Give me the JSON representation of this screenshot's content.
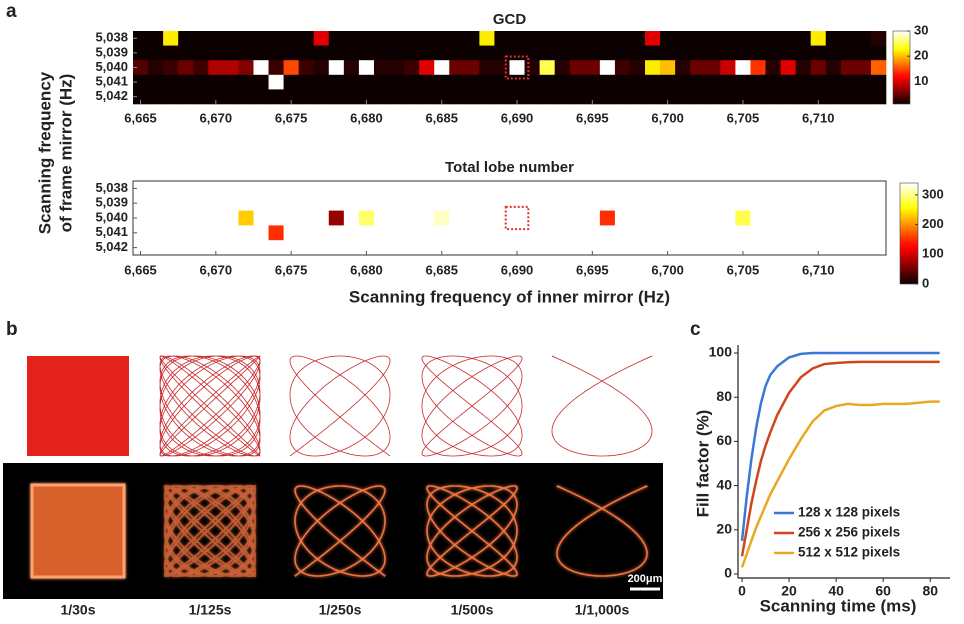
{
  "figure": {
    "panel_labels": [
      "a",
      "b",
      "c"
    ],
    "exposures": [
      "1/30s",
      "1/125s",
      "1/250s",
      "1/500s",
      "1/1,000s"
    ],
    "scale_bar": "200μm"
  },
  "chart_data": [
    {
      "type": "heatmap",
      "title": "GCD",
      "ylabel": "Scanning frequency of frame mirror (Hz)",
      "colormap": "hot",
      "yreverse": true,
      "x": [
        6665,
        6666,
        6667,
        6668,
        6669,
        6670,
        6671,
        6672,
        6673,
        6674,
        6675,
        6676,
        6677,
        6678,
        6679,
        6680,
        6681,
        6682,
        6683,
        6684,
        6685,
        6686,
        6687,
        6688,
        6689,
        6690,
        6691,
        6692,
        6693,
        6694,
        6695,
        6696,
        6697,
        6698,
        6699,
        6700,
        6701,
        6702,
        6703,
        6704,
        6705,
        6706,
        6707,
        6708,
        6709,
        6710,
        6711,
        6712,
        6713,
        6714
      ],
      "y": [
        5038,
        5039,
        5040,
        5041,
        5042
      ],
      "values": [
        [
          1,
          1,
          22,
          1,
          1,
          1,
          1,
          1,
          1,
          1,
          1,
          1,
          10,
          1,
          1,
          1,
          1,
          1,
          1,
          1,
          1,
          1,
          1,
          22,
          1,
          1,
          1,
          1,
          1,
          1,
          1,
          1,
          1,
          1,
          10,
          1,
          1,
          1,
          1,
          1,
          1,
          1,
          1,
          1,
          1,
          22,
          1,
          1,
          1,
          2
        ],
        [
          1,
          1,
          1,
          1,
          1,
          1,
          1,
          1,
          1,
          1,
          1,
          1,
          1,
          1,
          1,
          1,
          1,
          1,
          1,
          1,
          1,
          1,
          1,
          1,
          1,
          1,
          1,
          1,
          1,
          1,
          1,
          1,
          1,
          1,
          1,
          1,
          1,
          1,
          1,
          1,
          1,
          1,
          1,
          1,
          1,
          1,
          1,
          1,
          1,
          1
        ],
        [
          4,
          2,
          3,
          5,
          3,
          8,
          8,
          6,
          30,
          3,
          15,
          3,
          2,
          30,
          2,
          30,
          2,
          2,
          3,
          10,
          30,
          5,
          5,
          2,
          2,
          30,
          2,
          25,
          2,
          5,
          5,
          30,
          3,
          2,
          22,
          20,
          2,
          5,
          5,
          9,
          30,
          14,
          2,
          10,
          2,
          5,
          2,
          5,
          5,
          16
        ],
        [
          1,
          1,
          1,
          1,
          1,
          1,
          1,
          1,
          1,
          30,
          1,
          1,
          1,
          1,
          1,
          1,
          1,
          1,
          1,
          1,
          1,
          1,
          1,
          1,
          1,
          1,
          1,
          1,
          1,
          1,
          1,
          1,
          1,
          1,
          1,
          1,
          1,
          1,
          1,
          1,
          1,
          1,
          1,
          1,
          1,
          1,
          1,
          1,
          1,
          1
        ],
        [
          1,
          1,
          1,
          1,
          1,
          1,
          1,
          1,
          1,
          1,
          1,
          1,
          1,
          1,
          1,
          1,
          1,
          1,
          1,
          1,
          1,
          1,
          1,
          1,
          1,
          1,
          1,
          1,
          1,
          1,
          1,
          1,
          1,
          1,
          1,
          1,
          1,
          1,
          1,
          1,
          1,
          1,
          1,
          1,
          1,
          1,
          1,
          1,
          1,
          1
        ]
      ],
      "highlight": {
        "x": 6690,
        "y": 5040
      },
      "xlim": [
        6664.5,
        6714.5
      ],
      "ylim": [
        5037.5,
        5042.5
      ],
      "zlim": [
        1,
        30
      ],
      "zticks": [
        10,
        20,
        30
      ],
      "xticks": [
        {
          "value": 6665,
          "label": "6,665"
        },
        {
          "value": 6670,
          "label": "6,670"
        },
        {
          "value": 6675,
          "label": "6,675"
        },
        {
          "value": 6680,
          "label": "6,680"
        },
        {
          "value": 6685,
          "label": "6,685"
        },
        {
          "value": 6690,
          "label": "6,690"
        },
        {
          "value": 6695,
          "label": "6,695"
        },
        {
          "value": 6700,
          "label": "6,700"
        },
        {
          "value": 6705,
          "label": "6,705"
        },
        {
          "value": 6710,
          "label": "6,710"
        }
      ],
      "yticks": [
        {
          "value": 5038,
          "label": "5,038"
        },
        {
          "value": 5039,
          "label": "5,039"
        },
        {
          "value": 5040,
          "label": "5,040"
        },
        {
          "value": 5041,
          "label": "5,041"
        },
        {
          "value": 5042,
          "label": "5,042"
        }
      ]
    },
    {
      "type": "scatter",
      "marker": "square",
      "title": "Total lobe number",
      "xlabel": "Scanning frequency of inner mirror (Hz)",
      "colormap": "hot",
      "yreverse": true,
      "x": [
        6672,
        6674,
        6678,
        6680,
        6685,
        6696,
        6705
      ],
      "y": [
        5040,
        5041,
        5040,
        5040,
        5040,
        5040,
        5040
      ],
      "values": [
        230,
        150,
        70,
        290,
        320,
        150,
        280
      ],
      "highlight": {
        "x": 6690,
        "y": 5040
      },
      "xlim": [
        6664.5,
        6714.5
      ],
      "ylim": [
        5037.5,
        5042.5
      ],
      "zlim": [
        0,
        340
      ],
      "zticks": [
        0,
        100,
        200,
        300
      ],
      "xticks": [
        {
          "value": 6665,
          "label": "6,665"
        },
        {
          "value": 6670,
          "label": "6,670"
        },
        {
          "value": 6675,
          "label": "6,675"
        },
        {
          "value": 6680,
          "label": "6,680"
        },
        {
          "value": 6685,
          "label": "6,685"
        },
        {
          "value": 6690,
          "label": "6,690"
        },
        {
          "value": 6695,
          "label": "6,695"
        },
        {
          "value": 6700,
          "label": "6,700"
        },
        {
          "value": 6705,
          "label": "6,705"
        },
        {
          "value": 6710,
          "label": "6,710"
        }
      ],
      "yticks": [
        {
          "value": 5038,
          "label": "5,038"
        },
        {
          "value": 5039,
          "label": "5,039"
        },
        {
          "value": 5040,
          "label": "5,040"
        },
        {
          "value": 5041,
          "label": "5,041"
        },
        {
          "value": 5042,
          "label": "5,042"
        }
      ]
    },
    {
      "type": "line",
      "xlabel": "Scanning time (ms)",
      "ylabel": "Fill factor (%)",
      "x": [
        0,
        2,
        4,
        6,
        8,
        10,
        12,
        15,
        20,
        25,
        30,
        35,
        40,
        45,
        50,
        55,
        60,
        65,
        70,
        75,
        80,
        84
      ],
      "series": [
        {
          "name": "128 x 128 pixels",
          "color": "#3a78d8",
          "values": [
            15,
            35,
            52,
            66,
            77,
            85,
            90,
            94,
            98,
            99.6,
            100,
            100,
            100,
            100,
            100,
            100,
            100,
            100,
            100,
            100,
            100,
            100
          ]
        },
        {
          "name": "256 x 256 pixels",
          "color": "#d0461c",
          "values": [
            8,
            20,
            32,
            42,
            51,
            58,
            64,
            72,
            82,
            89,
            93,
            95,
            95.5,
            95.8,
            96,
            96,
            96,
            96,
            96,
            96,
            96,
            96
          ]
        },
        {
          "name": "512 x 512 pixels",
          "color": "#e8a820",
          "values": [
            3,
            9,
            15,
            21,
            26,
            31,
            36,
            42,
            52,
            61,
            69,
            74,
            76,
            77,
            76.5,
            76.5,
            77,
            77,
            77,
            77.5,
            78,
            78
          ]
        }
      ],
      "xlim": [
        0,
        85
      ],
      "ylim": [
        0,
        100
      ],
      "xticks": [
        0,
        20,
        40,
        60,
        80
      ],
      "yticks": [
        0,
        20,
        40,
        60,
        80,
        100
      ]
    }
  ]
}
